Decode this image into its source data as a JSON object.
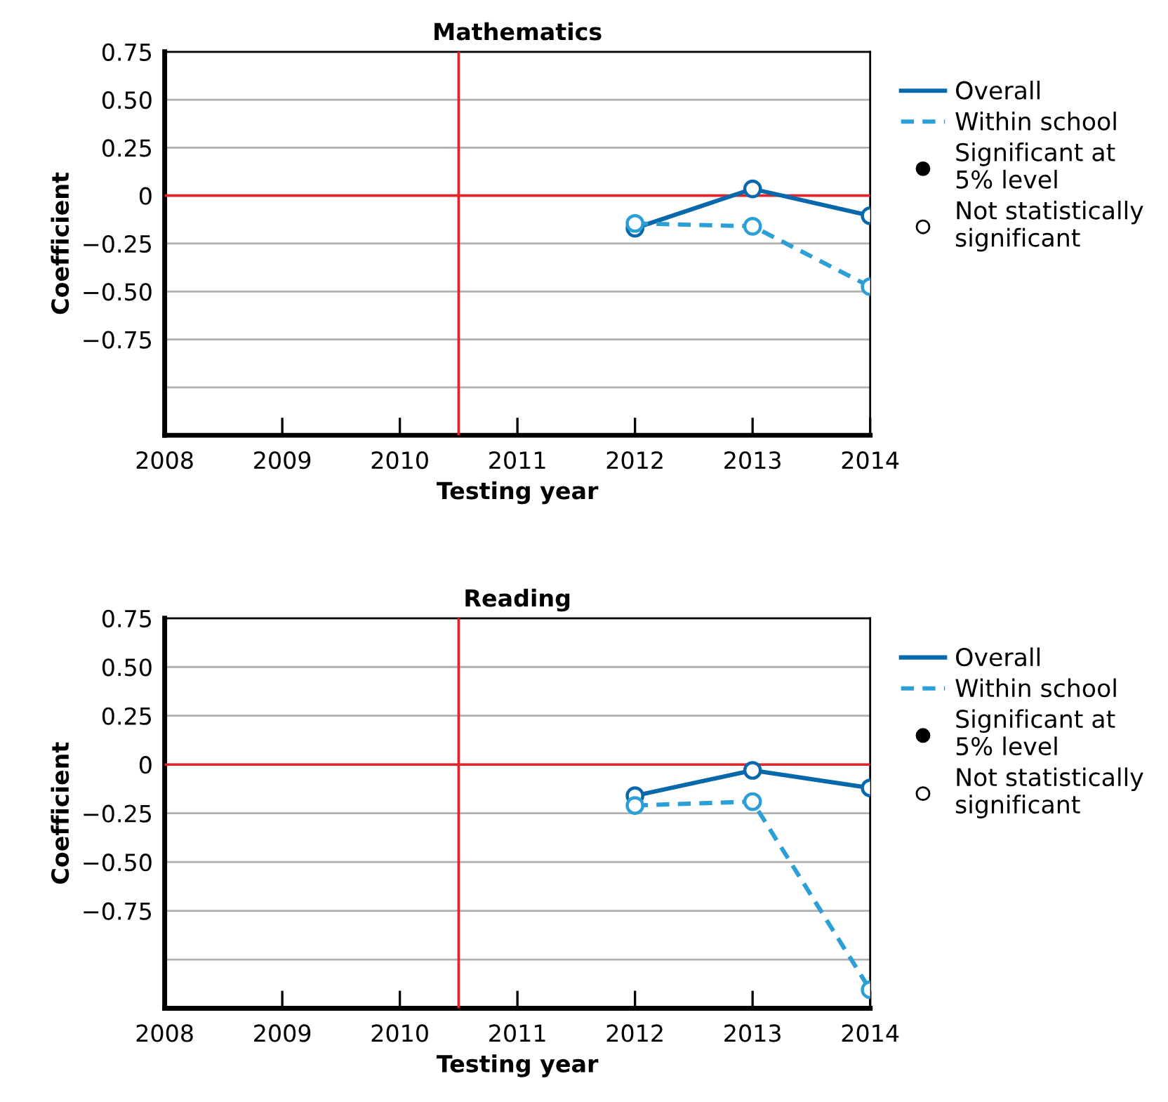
{
  "chart_data": [
    {
      "type": "line",
      "title": "Mathematics",
      "xlabel": "Testing year",
      "ylabel": "Coefficient",
      "x": [
        2012,
        2013,
        2014
      ],
      "series": [
        {
          "name": "Overall",
          "color": "#0868ac",
          "values": [
            -0.17,
            0.035,
            -0.105
          ],
          "line_style": "solid",
          "marker": "circle"
        },
        {
          "name": "Within school",
          "color": "#2b9fd6",
          "values": [
            -0.145,
            -0.16,
            -0.475
          ],
          "line_style": "dashed",
          "marker": "circle"
        },
        {
          "name": "Significant at\n5% level",
          "type": "scatter",
          "color": "#000000",
          "values": [
            null,
            null,
            null
          ],
          "marker": "circle"
        },
        {
          "name": "Not statistically\nsignificant",
          "type": "scatter",
          "color": "#ffffff",
          "values": [
            null,
            null,
            null
          ],
          "marker": "circle"
        }
      ],
      "xlim": [
        2008,
        2014
      ],
      "xticks": [
        2008,
        2009,
        2010,
        2011,
        2012,
        2013,
        2014
      ],
      "ylim": [
        -1.25,
        0.75
      ],
      "yticks": [
        {
          "value": 0.75,
          "label": "0.75"
        },
        {
          "value": 0.5,
          "label": "0.50"
        },
        {
          "value": 0.25,
          "label": "0.25"
        },
        0,
        {
          "value": -0.25,
          "label": "−0.25"
        },
        {
          "value": -0.5,
          "label": "−0.50"
        },
        {
          "value": -0.75,
          "label": "−0.75"
        },
        {
          "value": -1.0,
          "label": null
        }
      ],
      "ref_lines": [
        {
          "axis": "y",
          "value": 0,
          "color": "#e8202a"
        },
        {
          "axis": "x",
          "value": 2010.5,
          "color": "#e8202a"
        }
      ],
      "grid": "y",
      "legend": "right"
    },
    {
      "type": "line",
      "title": "Reading",
      "xlabel": "Testing year",
      "ylabel": "Coefficient",
      "x": [
        2012,
        2013,
        2014
      ],
      "series": [
        {
          "name": "Overall",
          "color": "#0868ac",
          "values": [
            -0.16,
            -0.03,
            -0.12
          ],
          "line_style": "solid",
          "marker": "circle"
        },
        {
          "name": "Within school",
          "color": "#2b9fd6",
          "values": [
            -0.21,
            -0.19,
            -1.155
          ],
          "line_style": "dashed",
          "marker": "circle"
        },
        {
          "name": "Significant at\n5% level",
          "type": "scatter",
          "color": "#000000",
          "values": [
            null,
            null,
            null
          ],
          "marker": "circle"
        },
        {
          "name": "Not statistically\nsignificant",
          "type": "scatter",
          "color": "#ffffff",
          "values": [
            null,
            null,
            null
          ],
          "marker": "circle"
        }
      ],
      "xlim": [
        2008,
        2014
      ],
      "xticks": [
        2008,
        2009,
        2010,
        2011,
        2012,
        2013,
        2014
      ],
      "ylim": [
        -1.25,
        0.75
      ],
      "yticks": [
        {
          "value": 0.75,
          "label": "0.75"
        },
        {
          "value": 0.5,
          "label": "0.50"
        },
        {
          "value": 0.25,
          "label": "0.25"
        },
        0,
        {
          "value": -0.25,
          "label": "−0.25"
        },
        {
          "value": -0.5,
          "label": "−0.50"
        },
        {
          "value": -0.75,
          "label": "−0.75"
        },
        {
          "value": -1.0,
          "label": null
        }
      ],
      "ref_lines": [
        {
          "axis": "y",
          "value": 0,
          "color": "#e8202a"
        },
        {
          "axis": "x",
          "value": 2010.5,
          "color": "#e8202a"
        }
      ],
      "grid": "y",
      "legend": "right"
    }
  ]
}
